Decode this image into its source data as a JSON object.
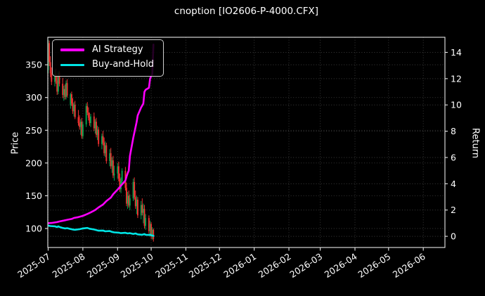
{
  "title": "cnoption [IO2606-P-4000.CFX]",
  "colors": {
    "background": "#000000",
    "text": "#ffffff",
    "grid": "#3d3d3d",
    "spine": "#e8e8e8",
    "up_candle": "#00a650",
    "down_candle": "#f23030",
    "ai_strategy": "#ff00ff",
    "buy_and_hold": "#00e5e5",
    "legend_border": "#cfcfcf"
  },
  "legend": {
    "items": [
      {
        "label": "AI Strategy",
        "color_key": "ai_strategy"
      },
      {
        "label": "Buy-and-Hold",
        "color_key": "buy_and_hold"
      }
    ]
  },
  "chart_data": {
    "type": "candlestick",
    "title": "cnoption [IO2606-P-4000.CFX]",
    "grid": true,
    "legend_position": "upper-left",
    "start_date": "2025-07-01",
    "price_axis": {
      "label": "Price",
      "ticks": [
        100,
        150,
        200,
        250,
        300,
        350
      ],
      "range": [
        71,
        392
      ]
    },
    "return_axis": {
      "label": "Return",
      "ticks": [
        0,
        2,
        4,
        6,
        8,
        10,
        12,
        14
      ],
      "range": [
        -0.85,
        15.15
      ]
    },
    "x_ticks": [
      {
        "date": "2025-07-01",
        "label": "2025-07"
      },
      {
        "date": "2025-08-01",
        "label": "2025-08"
      },
      {
        "date": "2025-09-01",
        "label": "2025-09"
      },
      {
        "date": "2025-10-01",
        "label": "2025-10"
      },
      {
        "date": "2025-11-01",
        "label": "2025-11"
      },
      {
        "date": "2025-12-01",
        "label": "2025-12"
      },
      {
        "date": "2026-01-01",
        "label": "2026-01"
      },
      {
        "date": "2026-02-01",
        "label": "2026-02"
      },
      {
        "date": "2026-03-01",
        "label": "2026-03"
      },
      {
        "date": "2026-04-01",
        "label": "2026-04"
      },
      {
        "date": "2026-05-01",
        "label": "2026-05"
      },
      {
        "date": "2026-06-01",
        "label": "2026-06"
      }
    ],
    "candles": [
      [
        "2025-07-01",
        342,
        388,
        337,
        383
      ],
      [
        "2025-07-02",
        383,
        387,
        348,
        354
      ],
      [
        "2025-07-03",
        354,
        363,
        331,
        337
      ],
      [
        "2025-07-04",
        337,
        346,
        319,
        324
      ],
      [
        "2025-07-07",
        324,
        342,
        317,
        336
      ],
      [
        "2025-07-08",
        336,
        344,
        321,
        326
      ],
      [
        "2025-07-09",
        326,
        334,
        304,
        309
      ],
      [
        "2025-07-10",
        309,
        341,
        305,
        338
      ],
      [
        "2025-07-11",
        338,
        341,
        317,
        321
      ],
      [
        "2025-07-14",
        321,
        330,
        299,
        304
      ],
      [
        "2025-07-15",
        304,
        318,
        295,
        313
      ],
      [
        "2025-07-16",
        313,
        320,
        297,
        301
      ],
      [
        "2025-07-17",
        301,
        326,
        297,
        322
      ],
      [
        "2025-07-18",
        322,
        328,
        300,
        303
      ],
      [
        "2025-07-21",
        288,
        307,
        283,
        305
      ],
      [
        "2025-07-22",
        305,
        309,
        287,
        291
      ],
      [
        "2025-07-23",
        291,
        299,
        275,
        279
      ],
      [
        "2025-07-24",
        279,
        293,
        271,
        289
      ],
      [
        "2025-07-25",
        289,
        295,
        267,
        270
      ],
      [
        "2025-07-28",
        270,
        281,
        257,
        261
      ],
      [
        "2025-07-29",
        261,
        273,
        251,
        255
      ],
      [
        "2025-07-30",
        255,
        267,
        243,
        263
      ],
      [
        "2025-07-31",
        263,
        269,
        237,
        241
      ],
      [
        "2025-08-01",
        241,
        263,
        237,
        259
      ],
      [
        "2025-08-04",
        259,
        291,
        255,
        287
      ],
      [
        "2025-08-05",
        287,
        293,
        273,
        277
      ],
      [
        "2025-08-06",
        277,
        285,
        265,
        269
      ],
      [
        "2025-08-07",
        269,
        277,
        257,
        261
      ],
      [
        "2025-08-08",
        261,
        275,
        255,
        271
      ],
      [
        "2025-08-11",
        271,
        277,
        249,
        253
      ],
      [
        "2025-08-12",
        253,
        267,
        245,
        263
      ],
      [
        "2025-08-13",
        263,
        269,
        239,
        243
      ],
      [
        "2025-08-14",
        243,
        257,
        235,
        251
      ],
      [
        "2025-08-15",
        251,
        255,
        225,
        229
      ],
      [
        "2025-08-18",
        229,
        245,
        221,
        241
      ],
      [
        "2025-08-19",
        241,
        249,
        227,
        231
      ],
      [
        "2025-08-20",
        231,
        239,
        211,
        215
      ],
      [
        "2025-08-21",
        215,
        233,
        209,
        227
      ],
      [
        "2025-08-22",
        227,
        231,
        199,
        203
      ],
      [
        "2025-08-25",
        203,
        221,
        195,
        215
      ],
      [
        "2025-08-26",
        215,
        223,
        191,
        195
      ],
      [
        "2025-08-27",
        195,
        209,
        185,
        204
      ],
      [
        "2025-08-28",
        204,
        211,
        177,
        181
      ],
      [
        "2025-08-29",
        181,
        196,
        173,
        184
      ],
      [
        "2025-09-01",
        184,
        200,
        176,
        195
      ],
      [
        "2025-09-02",
        195,
        202,
        172,
        176
      ],
      [
        "2025-09-03",
        176,
        184,
        156,
        160
      ],
      [
        "2025-09-04",
        160,
        178,
        154,
        172
      ],
      [
        "2025-09-05",
        172,
        192,
        168,
        188
      ],
      [
        "2025-09-08",
        188,
        194,
        158,
        162
      ],
      [
        "2025-09-09",
        162,
        170,
        134,
        138
      ],
      [
        "2025-09-10",
        138,
        156,
        130,
        150
      ],
      [
        "2025-09-11",
        150,
        158,
        132,
        135
      ],
      [
        "2025-09-12",
        135,
        152,
        128,
        146
      ],
      [
        "2025-09-15",
        146,
        176,
        142,
        171
      ],
      [
        "2025-09-16",
        171,
        178,
        144,
        148
      ],
      [
        "2025-09-17",
        148,
        158,
        130,
        134
      ],
      [
        "2025-09-18",
        134,
        150,
        122,
        144
      ],
      [
        "2025-09-19",
        144,
        148,
        116,
        120
      ],
      [
        "2025-09-22",
        120,
        142,
        114,
        136
      ],
      [
        "2025-09-23",
        136,
        146,
        120,
        124
      ],
      [
        "2025-09-24",
        124,
        138,
        108,
        130
      ],
      [
        "2025-09-25",
        130,
        136,
        100,
        104
      ],
      [
        "2025-09-26",
        104,
        122,
        98,
        116
      ],
      [
        "2025-09-29",
        116,
        120,
        92,
        96
      ],
      [
        "2025-09-30",
        96,
        112,
        88,
        107
      ],
      [
        "2025-10-01",
        107,
        110,
        84,
        88
      ],
      [
        "2025-10-02",
        88,
        102,
        83,
        98
      ],
      [
        "2025-10-03",
        98,
        100,
        80,
        84
      ]
    ],
    "series": [
      {
        "name": "AI Strategy",
        "axis": "return",
        "color": "#ff00ff",
        "points": [
          [
            "2025-07-01",
            1.0
          ],
          [
            "2025-07-04",
            1.02
          ],
          [
            "2025-07-09",
            1.08
          ],
          [
            "2025-07-11",
            1.13
          ],
          [
            "2025-07-15",
            1.2
          ],
          [
            "2025-07-18",
            1.26
          ],
          [
            "2025-07-22",
            1.32
          ],
          [
            "2025-07-24",
            1.4
          ],
          [
            "2025-07-28",
            1.46
          ],
          [
            "2025-08-01",
            1.56
          ],
          [
            "2025-08-05",
            1.7
          ],
          [
            "2025-08-08",
            1.82
          ],
          [
            "2025-08-12",
            2.0
          ],
          [
            "2025-08-15",
            2.2
          ],
          [
            "2025-08-19",
            2.42
          ],
          [
            "2025-08-22",
            2.68
          ],
          [
            "2025-08-26",
            2.95
          ],
          [
            "2025-08-28",
            3.2
          ],
          [
            "2025-09-01",
            3.56
          ],
          [
            "2025-09-03",
            3.75
          ],
          [
            "2025-09-05",
            3.95
          ],
          [
            "2025-09-08",
            4.25
          ],
          [
            "2025-09-09",
            4.55
          ],
          [
            "2025-09-10",
            4.8
          ],
          [
            "2025-09-11",
            5.0
          ],
          [
            "2025-09-12",
            6.1
          ],
          [
            "2025-09-15",
            7.5
          ],
          [
            "2025-09-16",
            7.9
          ],
          [
            "2025-09-17",
            8.3
          ],
          [
            "2025-09-18",
            8.7
          ],
          [
            "2025-09-19",
            9.2
          ],
          [
            "2025-09-22",
            9.8
          ],
          [
            "2025-09-23",
            9.95
          ],
          [
            "2025-09-24",
            10.1
          ],
          [
            "2025-09-25",
            11.0
          ],
          [
            "2025-09-26",
            11.15
          ],
          [
            "2025-09-29",
            11.3
          ],
          [
            "2025-09-30",
            12.0
          ],
          [
            "2025-10-01",
            12.2
          ],
          [
            "2025-10-02",
            12.35
          ],
          [
            "2025-10-03",
            14.6
          ]
        ]
      },
      {
        "name": "Buy-and-Hold",
        "axis": "return",
        "color": "#00e5e5",
        "points": [
          [
            "2025-07-01",
            0.82
          ],
          [
            "2025-07-02",
            0.8
          ],
          [
            "2025-07-03",
            0.78
          ],
          [
            "2025-07-07",
            0.76
          ],
          [
            "2025-07-09",
            0.7
          ],
          [
            "2025-07-10",
            0.76
          ],
          [
            "2025-07-11",
            0.72
          ],
          [
            "2025-07-14",
            0.64
          ],
          [
            "2025-07-16",
            0.6
          ],
          [
            "2025-07-18",
            0.62
          ],
          [
            "2025-07-21",
            0.56
          ],
          [
            "2025-07-23",
            0.52
          ],
          [
            "2025-07-25",
            0.5
          ],
          [
            "2025-07-29",
            0.54
          ],
          [
            "2025-08-01",
            0.6
          ],
          [
            "2025-08-05",
            0.64
          ],
          [
            "2025-08-07",
            0.58
          ],
          [
            "2025-08-11",
            0.52
          ],
          [
            "2025-08-13",
            0.47
          ],
          [
            "2025-08-15",
            0.43
          ],
          [
            "2025-08-19",
            0.44
          ],
          [
            "2025-08-21",
            0.38
          ],
          [
            "2025-08-25",
            0.4
          ],
          [
            "2025-08-27",
            0.34
          ],
          [
            "2025-08-29",
            0.3
          ],
          [
            "2025-09-02",
            0.28
          ],
          [
            "2025-09-04",
            0.24
          ],
          [
            "2025-09-08",
            0.27
          ],
          [
            "2025-09-10",
            0.22
          ],
          [
            "2025-09-12",
            0.24
          ],
          [
            "2025-09-15",
            0.18
          ],
          [
            "2025-09-17",
            0.22
          ],
          [
            "2025-09-19",
            0.15
          ],
          [
            "2025-09-23",
            0.12
          ],
          [
            "2025-09-25",
            0.17
          ],
          [
            "2025-09-26",
            0.12
          ],
          [
            "2025-09-29",
            0.1
          ],
          [
            "2025-09-30",
            0.13
          ],
          [
            "2025-10-01",
            0.08
          ],
          [
            "2025-10-02",
            0.06
          ],
          [
            "2025-10-03",
            0.04
          ]
        ]
      }
    ]
  }
}
